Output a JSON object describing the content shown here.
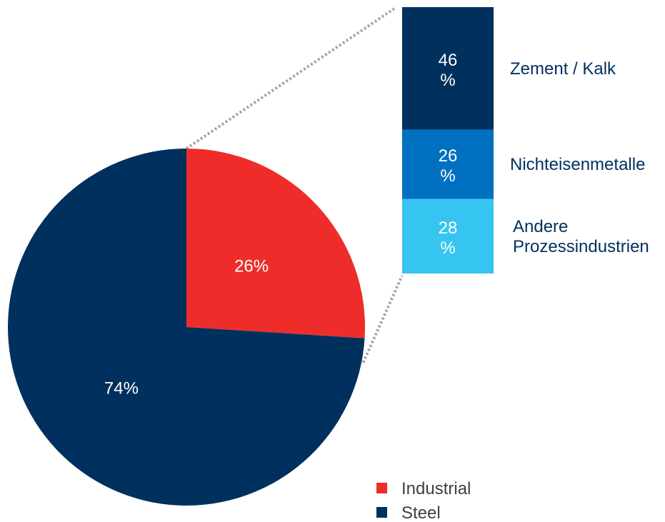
{
  "chart_data": {
    "type": "bar-of-pie",
    "pie": {
      "slices": [
        {
          "name": "Industrial",
          "value": 26,
          "label": "26%",
          "color": "#ee2d2b"
        },
        {
          "name": "Steel",
          "value": 74,
          "label": "74%",
          "color": "#00305d"
        }
      ]
    },
    "breakdown": {
      "parent": "Industrial",
      "segments": [
        {
          "name": "Zement / Kalk",
          "value": 46,
          "label_lines": [
            "46",
            "%"
          ],
          "color": "#00305d",
          "text_color": "#00305d",
          "name_lines": [
            "Zement / Kalk"
          ]
        },
        {
          "name": "Nichteisenmetalle",
          "value": 26,
          "label_lines": [
            "26",
            "%"
          ],
          "color": "#0070c0",
          "text_color": "#00305d",
          "name_lines": [
            "Nichteisenmetalle"
          ]
        },
        {
          "name": "Andere Prozessindustrien",
          "value": 28,
          "label_lines": [
            "28",
            "%"
          ],
          "color": "#36c5f0",
          "text_color": "#00305d",
          "name_lines": [
            "Andere",
            "Prozessindustrien"
          ]
        }
      ]
    },
    "legend": {
      "position": "bottom-right",
      "entries": [
        {
          "name": "Industrial",
          "color": "#ee2d2b"
        },
        {
          "name": "Steel",
          "color": "#00305d"
        }
      ]
    },
    "connector_color": "#a6a6a6"
  }
}
